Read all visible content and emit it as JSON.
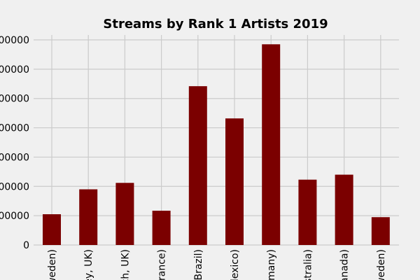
{
  "chart_data": {
    "type": "bar",
    "title": "Streams by Rank 1 Artists 2019",
    "xlabel": "",
    "ylabel": "",
    "categories": [
      "weden)",
      "ey, UK)",
      "ch, UK)",
      "rance)",
      "Brazil)",
      "lexico)",
      "many)",
      "stralia)",
      "anada)",
      "weden)"
    ],
    "values": [
      10500000,
      19000000,
      21200000,
      11700000,
      54200000,
      43200000,
      68500000,
      22300000,
      24000000,
      9500000
    ],
    "ylim": [
      0,
      70000000
    ],
    "yticks": [
      0,
      10000000,
      20000000,
      30000000,
      40000000,
      50000000,
      60000000,
      70000000
    ],
    "ytick_labels": [
      "0",
      "000000",
      "000000",
      "000000",
      "000000",
      "000000",
      "000000",
      "000000"
    ],
    "grid": true,
    "bar_color": "#7b0000",
    "background": "#f0f0f0",
    "grid_color": "#cbcbcb"
  }
}
